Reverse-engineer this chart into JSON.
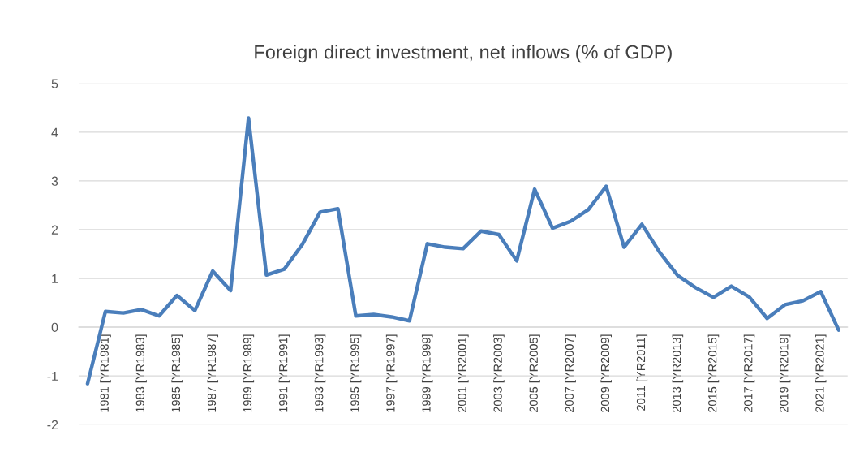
{
  "chart_data": {
    "type": "line",
    "title": "Foreign direct investment, net inflows (% of GDP)",
    "categories": [
      null,
      "1981 [YR1981]",
      null,
      "1983 [YR1983]",
      null,
      "1985 [YR1985]",
      null,
      "1987 [YR1987]",
      null,
      "1989 [YR1989]",
      null,
      "1991 [YR1991]",
      null,
      "1993 [YR1993]",
      null,
      "1995 [YR1995]",
      null,
      "1997 [YR1997]",
      null,
      "1999 [YR1999]",
      null,
      "2001 [YR2001]",
      null,
      "2003 [YR2003]",
      null,
      "2005 [YR2005]",
      null,
      "2007 [YR2007]",
      null,
      "2009 [YR2009]",
      null,
      "2011 [YR2011]",
      null,
      "2013 [YR2013]",
      null,
      "2015 [YR2015]",
      null,
      "2017 [YR2017]",
      null,
      "2019 [YR2019]",
      null,
      "2021 [YR2021]",
      null
    ],
    "series": [
      {
        "color": "#4a7ebb",
        "values": [
          -1.16,
          0.32,
          0.29,
          0.36,
          0.23,
          0.65,
          0.34,
          1.15,
          0.75,
          4.29,
          1.07,
          1.19,
          1.69,
          2.36,
          2.43,
          0.23,
          0.26,
          0.21,
          0.13,
          1.71,
          1.64,
          1.61,
          1.97,
          1.9,
          1.36,
          2.83,
          2.03,
          2.17,
          2.41,
          2.89,
          1.64,
          2.11,
          1.53,
          1.06,
          0.81,
          0.61,
          0.84,
          0.62,
          0.18,
          0.46,
          0.54,
          0.73,
          -0.06
        ]
      }
    ],
    "ylim": [
      -2,
      5
    ],
    "yticks": [
      -2,
      -1,
      0,
      1,
      2,
      3,
      4,
      5
    ],
    "grid": "y",
    "marker": "none",
    "line_style": "solid"
  }
}
